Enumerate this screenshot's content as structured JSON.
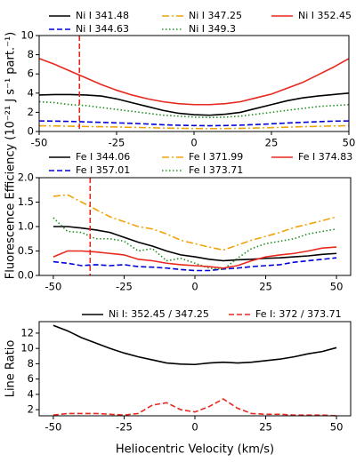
{
  "chart_data": [
    {
      "type": "line",
      "ylabel": "Fluorescence Efficiency (10⁻²¹ J s⁻¹ part.⁻¹)",
      "xlim": [
        -50,
        50
      ],
      "xticks": [
        -50,
        -25,
        0,
        25,
        50
      ],
      "ylim": [
        0,
        10
      ],
      "yticks": [
        0,
        2,
        4,
        6,
        8,
        10
      ],
      "legend_columns": 3,
      "vline": {
        "x": -37,
        "color": "#e8281e",
        "linestyle": "dashed"
      },
      "x": [
        -50,
        -45,
        -40,
        -35,
        -30,
        -25,
        -20,
        -15,
        -10,
        -5,
        0,
        5,
        10,
        15,
        20,
        25,
        30,
        35,
        40,
        45,
        50
      ],
      "series": [
        {
          "name": "Ni I 341.48",
          "color": "#000000",
          "linestyle": "solid",
          "values": [
            3.8,
            3.85,
            3.85,
            3.8,
            3.7,
            3.4,
            3.0,
            2.6,
            2.2,
            1.9,
            1.75,
            1.7,
            1.8,
            2.0,
            2.4,
            2.8,
            3.2,
            3.5,
            3.7,
            3.85,
            4.0
          ]
        },
        {
          "name": "Ni I 344.63",
          "color": "#0000dd",
          "linestyle": "dashed",
          "values": [
            1.1,
            1.08,
            1.05,
            1.0,
            0.95,
            0.9,
            0.85,
            0.78,
            0.7,
            0.65,
            0.62,
            0.6,
            0.62,
            0.66,
            0.72,
            0.8,
            0.88,
            0.95,
            1.02,
            1.08,
            1.1
          ]
        },
        {
          "name": "Ni I 347.25",
          "color": "#f0a30a",
          "linestyle": "dashdot",
          "values": [
            0.6,
            0.58,
            0.55,
            0.52,
            0.5,
            0.47,
            0.43,
            0.4,
            0.36,
            0.33,
            0.31,
            0.3,
            0.31,
            0.33,
            0.36,
            0.4,
            0.45,
            0.5,
            0.54,
            0.58,
            0.6
          ]
        },
        {
          "name": "Ni I 349.3",
          "color": "#1f8f1f",
          "linestyle": "dotted",
          "values": [
            3.1,
            3.0,
            2.8,
            2.7,
            2.5,
            2.3,
            2.1,
            1.9,
            1.7,
            1.6,
            1.5,
            1.45,
            1.5,
            1.6,
            1.8,
            2.0,
            2.2,
            2.4,
            2.6,
            2.7,
            2.8
          ]
        },
        {
          "name": "Ni I 352.45",
          "color": "#e8281e",
          "linestyle": "solid",
          "values": [
            7.6,
            7.0,
            6.3,
            5.6,
            4.9,
            4.3,
            3.8,
            3.4,
            3.1,
            2.9,
            2.8,
            2.8,
            2.9,
            3.1,
            3.5,
            3.9,
            4.5,
            5.1,
            5.9,
            6.7,
            7.6
          ]
        }
      ]
    },
    {
      "type": "line",
      "xlim": [
        -55,
        55
      ],
      "xticks": [
        -50,
        -25,
        0,
        25,
        50
      ],
      "ylim": [
        0,
        2
      ],
      "yticks": [
        {
          "value": 0,
          "label": "0.0"
        },
        {
          "value": 0.5,
          "label": "0.5"
        },
        {
          "value": 1,
          "label": "1.0"
        },
        {
          "value": 1.5,
          "label": "1.5"
        },
        {
          "value": 2,
          "label": "2.0"
        }
      ],
      "legend_columns": 3,
      "vline": {
        "x": -37,
        "color": "#e8281e",
        "linestyle": "dashed"
      },
      "x": [
        -50,
        -45,
        -40,
        -35,
        -30,
        -25,
        -20,
        -15,
        -10,
        -5,
        0,
        5,
        10,
        15,
        20,
        25,
        30,
        35,
        40,
        45,
        50
      ],
      "series": [
        {
          "name": "Fe I 344.06",
          "color": "#000000",
          "linestyle": "solid",
          "values": [
            1.0,
            1.0,
            0.97,
            0.93,
            0.88,
            0.78,
            0.68,
            0.6,
            0.5,
            0.42,
            0.38,
            0.33,
            0.3,
            0.32,
            0.33,
            0.35,
            0.36,
            0.38,
            0.4,
            0.43,
            0.45
          ]
        },
        {
          "name": "Fe I 357.01",
          "color": "#0000dd",
          "linestyle": "dashed",
          "values": [
            0.28,
            0.25,
            0.2,
            0.22,
            0.2,
            0.22,
            0.18,
            0.17,
            0.15,
            0.12,
            0.1,
            0.1,
            0.13,
            0.15,
            0.18,
            0.2,
            0.22,
            0.27,
            0.3,
            0.33,
            0.36
          ]
        },
        {
          "name": "Fe I 371.99",
          "color": "#f0a30a",
          "linestyle": "dashdot",
          "values": [
            1.62,
            1.65,
            1.5,
            1.35,
            1.2,
            1.1,
            1.0,
            0.95,
            0.85,
            0.72,
            0.65,
            0.58,
            0.52,
            0.62,
            0.72,
            0.8,
            0.88,
            0.98,
            1.05,
            1.12,
            1.2
          ]
        },
        {
          "name": "Fe I 373.71",
          "color": "#1f8f1f",
          "linestyle": "dotted",
          "values": [
            1.18,
            0.9,
            0.88,
            0.75,
            0.75,
            0.7,
            0.5,
            0.55,
            0.3,
            0.35,
            0.25,
            0.15,
            0.12,
            0.35,
            0.55,
            0.65,
            0.7,
            0.75,
            0.85,
            0.9,
            0.95
          ]
        },
        {
          "name": "Fe I 374.83",
          "color": "#e8281e",
          "linestyle": "solid",
          "values": [
            0.38,
            0.5,
            0.5,
            0.48,
            0.45,
            0.42,
            0.33,
            0.3,
            0.25,
            0.22,
            0.2,
            0.18,
            0.15,
            0.2,
            0.3,
            0.38,
            0.42,
            0.45,
            0.5,
            0.56,
            0.58
          ]
        }
      ]
    },
    {
      "type": "line",
      "ylabel": "Line Ratio",
      "xlabel": "Heliocentric Velocity (km/s)",
      "xlim": [
        -55,
        55
      ],
      "xticks": [
        -50,
        -25,
        0,
        25,
        50
      ],
      "ylim": [
        1.2,
        13.5
      ],
      "yticks": [
        2,
        4,
        6,
        8,
        10,
        12
      ],
      "legend_columns": 2,
      "x": [
        -50,
        -45,
        -40,
        -35,
        -30,
        -25,
        -20,
        -15,
        -10,
        -5,
        0,
        5,
        10,
        15,
        20,
        25,
        30,
        35,
        40,
        45,
        50
      ],
      "series": [
        {
          "name": "Ni I: 352.45 / 347.25",
          "color": "#000000",
          "linestyle": "solid",
          "values": [
            13.0,
            12.3,
            11.4,
            10.7,
            10.0,
            9.4,
            8.9,
            8.5,
            8.1,
            7.95,
            7.9,
            8.1,
            8.2,
            8.1,
            8.2,
            8.4,
            8.6,
            8.9,
            9.3,
            9.6,
            10.1
          ]
        },
        {
          "name": "Fe I: 372 / 373.71",
          "color": "#e8281e",
          "linestyle": "dashed",
          "values": [
            1.3,
            1.5,
            1.5,
            1.5,
            1.4,
            1.3,
            1.5,
            2.6,
            2.9,
            2.0,
            1.7,
            2.4,
            3.4,
            2.2,
            1.5,
            1.4,
            1.4,
            1.3,
            1.3,
            1.3,
            1.2
          ]
        }
      ]
    }
  ]
}
